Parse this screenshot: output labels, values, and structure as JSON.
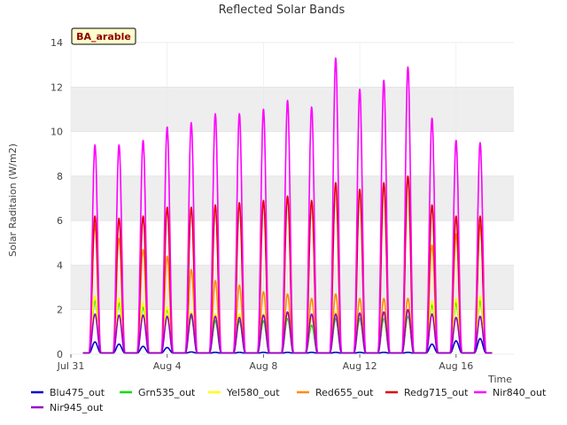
{
  "chart_data": {
    "type": "line",
    "title": "Reflected Solar Bands",
    "ylabel": "Solar Raditaion (W/m2)",
    "xlabel": "Time",
    "badge": "BA_arable",
    "ylim": [
      0,
      14
    ],
    "yticks": [
      0,
      2,
      4,
      6,
      8,
      10,
      12,
      14
    ],
    "xlim": [
      0,
      18.4
    ],
    "xticks": [
      {
        "pos": 0,
        "label": "Jul 31"
      },
      {
        "pos": 4,
        "label": "Aug 4"
      },
      {
        "pos": 8,
        "label": "Aug 8"
      },
      {
        "pos": 12,
        "label": "Aug 12"
      },
      {
        "pos": 16,
        "label": "Aug 16"
      }
    ],
    "grid": "horizontal bands",
    "legend_placement": "bottom",
    "day_offsets": [
      1,
      2,
      3,
      4,
      5,
      6,
      7,
      8,
      9,
      10,
      11,
      12,
      13,
      14,
      15,
      16,
      17
    ],
    "series": [
      {
        "name": "Blu475_out",
        "color": "#0000cc",
        "peaks": [
          0.55,
          0.45,
          0.35,
          0.3,
          0.1,
          0.08,
          0.08,
          0.08,
          0.08,
          0.08,
          0.08,
          0.08,
          0.08,
          0.08,
          0.45,
          0.6,
          0.7
        ]
      },
      {
        "name": "Grn535_out",
        "color": "#00dd00",
        "peaks": [
          2.4,
          2.3,
          2.1,
          2.0,
          1.7,
          1.5,
          1.5,
          1.5,
          1.6,
          1.3,
          1.6,
          1.6,
          1.6,
          1.7,
          2.2,
          2.3,
          2.4
        ]
      },
      {
        "name": "Yel580_out",
        "color": "#ffff00",
        "peaks": [
          2.6,
          2.5,
          2.3,
          2.1,
          1.9,
          1.8,
          1.8,
          1.8,
          1.8,
          1.6,
          1.9,
          1.8,
          1.8,
          1.9,
          2.4,
          2.5,
          2.6
        ]
      },
      {
        "name": "Red655_out",
        "color": "#ff8c00",
        "peaks": [
          5.8,
          5.2,
          4.7,
          4.4,
          3.8,
          3.3,
          3.1,
          2.8,
          2.7,
          2.5,
          2.7,
          2.5,
          2.5,
          2.5,
          4.9,
          5.4,
          5.8
        ]
      },
      {
        "name": "Redg715_out",
        "color": "#dd0000",
        "peaks": [
          6.2,
          6.1,
          6.2,
          6.6,
          6.6,
          6.7,
          6.8,
          6.9,
          7.1,
          6.9,
          7.7,
          7.4,
          7.7,
          8.0,
          6.7,
          6.2,
          6.2
        ]
      },
      {
        "name": "Nir840_out",
        "color": "#ff00ff",
        "peaks": [
          9.4,
          9.4,
          9.6,
          10.2,
          10.4,
          10.8,
          10.8,
          11.0,
          11.4,
          11.1,
          13.3,
          11.9,
          12.3,
          12.9,
          10.6,
          9.6,
          9.5
        ]
      },
      {
        "name": "Nir945_out",
        "color": "#9900cc",
        "peaks": [
          1.8,
          1.75,
          1.75,
          1.7,
          1.8,
          1.7,
          1.65,
          1.75,
          1.9,
          1.8,
          1.8,
          1.85,
          1.9,
          2.0,
          1.8,
          1.65,
          1.7
        ]
      }
    ]
  }
}
